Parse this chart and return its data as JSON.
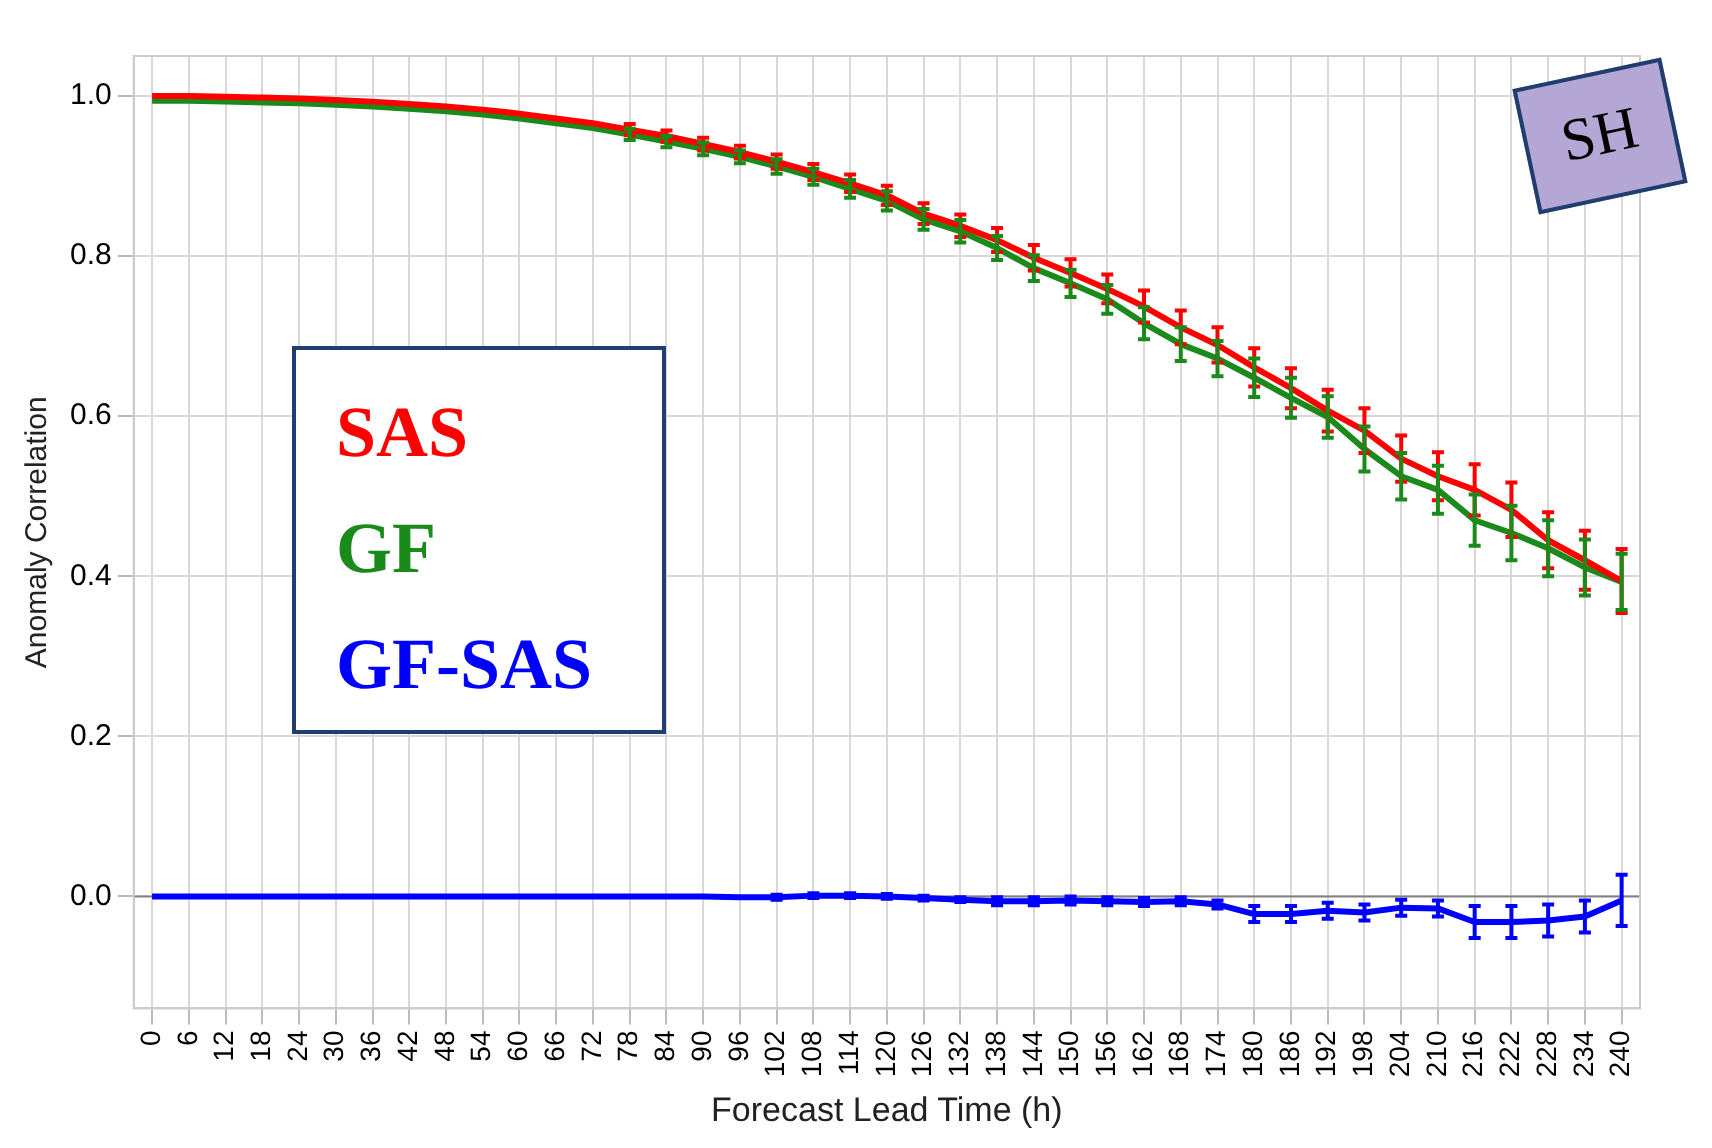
{
  "chart_data": {
    "type": "line",
    "xlabel": "Forecast Lead Time (h)",
    "ylabel": "Anomaly Correlation",
    "categories": [
      "0",
      "6",
      "12",
      "18",
      "24",
      "30",
      "36",
      "42",
      "48",
      "54",
      "60",
      "66",
      "72",
      "78",
      "84",
      "90",
      "96",
      "102",
      "108",
      "114",
      "120",
      "126",
      "132",
      "138",
      "144",
      "150",
      "156",
      "162",
      "168",
      "174",
      "180",
      "186",
      "192",
      "198",
      "204",
      "210",
      "216",
      "222",
      "228",
      "234",
      "240"
    ],
    "series": [
      {
        "name": "SAS",
        "color": "#ff0000",
        "values": [
          1.0,
          1.0,
          0.999,
          0.998,
          0.997,
          0.995,
          0.993,
          0.99,
          0.987,
          0.983,
          0.978,
          0.972,
          0.966,
          0.958,
          0.95,
          0.94,
          0.93,
          0.918,
          0.905,
          0.891,
          0.876,
          0.853,
          0.838,
          0.82,
          0.798,
          0.779,
          0.759,
          0.737,
          0.711,
          0.689,
          0.661,
          0.635,
          0.607,
          0.582,
          0.547,
          0.525,
          0.508,
          0.483,
          0.445,
          0.42,
          0.394
        ],
        "errors": [
          null,
          null,
          null,
          null,
          null,
          null,
          null,
          null,
          null,
          null,
          null,
          null,
          null,
          0.007,
          0.007,
          0.008,
          0.008,
          0.009,
          0.01,
          0.011,
          0.012,
          0.013,
          0.014,
          0.015,
          0.016,
          0.017,
          0.018,
          0.02,
          0.021,
          0.022,
          0.024,
          0.025,
          0.026,
          0.028,
          0.029,
          0.03,
          0.032,
          0.034,
          0.035,
          0.037,
          0.04
        ]
      },
      {
        "name": "GF",
        "color": "#1a8a1a",
        "values": [
          0.994,
          0.994,
          0.993,
          0.992,
          0.991,
          0.989,
          0.987,
          0.984,
          0.981,
          0.977,
          0.972,
          0.966,
          0.96,
          0.952,
          0.943,
          0.934,
          0.924,
          0.912,
          0.899,
          0.884,
          0.869,
          0.846,
          0.831,
          0.81,
          0.785,
          0.766,
          0.746,
          0.716,
          0.69,
          0.672,
          0.648,
          0.623,
          0.599,
          0.559,
          0.525,
          0.508,
          0.47,
          0.454,
          0.435,
          0.411,
          0.393
        ],
        "errors": [
          null,
          null,
          null,
          null,
          null,
          null,
          null,
          null,
          null,
          null,
          null,
          null,
          null,
          0.007,
          0.007,
          0.008,
          0.008,
          0.009,
          0.01,
          0.011,
          0.012,
          0.013,
          0.014,
          0.015,
          0.016,
          0.017,
          0.018,
          0.02,
          0.021,
          0.022,
          0.024,
          0.025,
          0.026,
          0.028,
          0.029,
          0.03,
          0.032,
          0.034,
          0.035,
          0.035,
          0.035
        ]
      },
      {
        "name": "GF-SAS",
        "color": "#0000ff",
        "values": [
          0,
          0,
          0,
          0,
          0,
          0,
          0,
          0,
          0,
          0,
          0,
          0,
          0,
          0,
          0,
          0,
          -0.001,
          -0.001,
          0.001,
          0.001,
          0,
          -0.002,
          -0.004,
          -0.006,
          -0.006,
          -0.005,
          -0.006,
          -0.007,
          -0.006,
          -0.01,
          -0.022,
          -0.022,
          -0.018,
          -0.02,
          -0.014,
          -0.015,
          -0.032,
          -0.032,
          -0.03,
          -0.025,
          -0.005
        ],
        "errors": [
          null,
          null,
          null,
          null,
          null,
          null,
          null,
          null,
          null,
          null,
          null,
          null,
          null,
          null,
          null,
          null,
          null,
          0.003,
          0.003,
          0.003,
          0.003,
          0.003,
          0.003,
          0.005,
          0.005,
          0.005,
          0.005,
          0.005,
          0.005,
          0.005,
          0.01,
          0.01,
          0.01,
          0.01,
          0.01,
          0.01,
          0.02,
          0.02,
          0.02,
          0.02,
          0.032
        ]
      }
    ],
    "ylim": [
      -0.14,
      1.05
    ],
    "yticks": [
      {
        "value": 0,
        "label": "0.0"
      },
      {
        "value": 0.2,
        "label": "0.2"
      },
      {
        "value": 0.4,
        "label": "0.4"
      },
      {
        "value": 0.6,
        "label": "0.6"
      },
      {
        "value": 0.8,
        "label": "0.8"
      },
      {
        "value": 1,
        "label": "1.0"
      }
    ],
    "ref_lines": [
      {
        "axis": "y",
        "value": 0,
        "color": "#808080"
      }
    ],
    "grid": true,
    "legend": "left",
    "marker": "none",
    "line_style": "solid",
    "annotations": [
      "SH"
    ]
  }
}
